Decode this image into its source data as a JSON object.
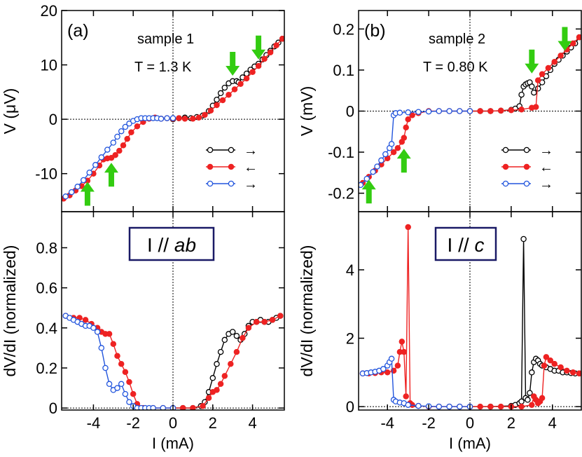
{
  "colors": {
    "up1": "#000000",
    "down": "#ee2222",
    "up2": "#2255dd",
    "arrow": "#33cc11"
  },
  "chart_data": [
    {
      "type": "scatter",
      "panel": "a-top",
      "label": "(a)",
      "annotations": [
        "sample 1",
        "T = 1.3 K"
      ],
      "ylabel": "V (μV)",
      "xlim": [
        -5.6,
        5.6
      ],
      "ylim": [
        -17,
        20
      ],
      "yticks": [
        "20",
        "10",
        "0",
        "-10"
      ],
      "ytick_values": [
        20,
        10,
        0,
        -10
      ],
      "legend": [
        "→",
        "←",
        "→"
      ],
      "green_arrows": [
        {
          "x": 3.0,
          "y": 7.5,
          "dir": "down"
        },
        {
          "x": 4.3,
          "y": 10.5,
          "dir": "down"
        },
        {
          "x": -4.3,
          "y": -11.0,
          "dir": "up"
        },
        {
          "x": -3.1,
          "y": -7.5,
          "dir": "up"
        }
      ],
      "series": [
        {
          "name": "up1",
          "style": "open",
          "color_key": "up1",
          "x": [
            0.0,
            0.3,
            0.6,
            0.9,
            1.2,
            1.5,
            1.8,
            2.0,
            2.2,
            2.4,
            2.6,
            2.8,
            3.0,
            3.2,
            3.3,
            3.5,
            3.7,
            3.9,
            4.1,
            4.3,
            4.5,
            4.7,
            4.9,
            5.1,
            5.3,
            5.5
          ],
          "y": [
            0.0,
            0.2,
            0.3,
            0.2,
            0.4,
            0.7,
            1.5,
            2.5,
            3.6,
            4.8,
            5.8,
            6.6,
            7.0,
            7.0,
            6.8,
            7.7,
            8.4,
            9.1,
            9.7,
            10.2,
            11.0,
            11.8,
            12.6,
            13.4,
            14.1,
            14.8
          ]
        },
        {
          "name": "down",
          "style": "filled",
          "color_key": "down",
          "x": [
            5.5,
            5.2,
            4.9,
            4.6,
            4.3,
            4.0,
            3.7,
            3.4,
            3.1,
            2.8,
            2.5,
            2.2,
            1.9,
            1.6,
            1.3,
            1.0,
            0.6,
            0.3,
            0.0,
            -0.3,
            -0.6,
            -0.9,
            -1.2,
            -1.5,
            -1.8,
            -2.1,
            -2.3,
            -2.5,
            -2.7,
            -2.9,
            -3.1,
            -3.3,
            -3.5,
            -3.7,
            -4.0,
            -4.3,
            -4.6,
            -4.9,
            -5.2,
            -5.5
          ],
          "y": [
            14.8,
            13.6,
            12.3,
            11.1,
            9.8,
            8.7,
            7.5,
            6.5,
            5.5,
            4.5,
            3.5,
            2.6,
            1.6,
            0.8,
            0.3,
            0.1,
            0.1,
            0.2,
            0.1,
            0.2,
            0.1,
            0.3,
            0.1,
            -0.5,
            -1.3,
            -2.4,
            -3.6,
            -4.8,
            -5.8,
            -6.6,
            -7.1,
            -7.2,
            -7.4,
            -8.5,
            -10.0,
            -11.3,
            -12.3,
            -13.1,
            -14.0,
            -14.6
          ]
        },
        {
          "name": "up2",
          "style": "open",
          "color_key": "up2",
          "x": [
            -5.4,
            -5.1,
            -4.8,
            -4.5,
            -4.2,
            -3.9,
            -3.6,
            -3.3,
            -3.0,
            -2.8,
            -2.6,
            -2.4,
            -2.2,
            -2.0,
            -1.8,
            -1.6,
            -1.4,
            -1.2,
            -1.0,
            -0.8,
            -0.6,
            -0.3,
            0.0
          ],
          "y": [
            -14.2,
            -13.4,
            -12.4,
            -11.2,
            -9.8,
            -8.4,
            -7.0,
            -5.6,
            -4.3,
            -3.2,
            -2.2,
            -1.4,
            -0.8,
            -0.3,
            0.0,
            0.2,
            0.2,
            0.2,
            0.2,
            0.2,
            0.1,
            0.2,
            0.2
          ]
        }
      ]
    },
    {
      "type": "scatter",
      "panel": "a-bottom",
      "box_label_plain": "I // ",
      "box_label_italic": "ab",
      "xlabel": "I (mA)",
      "ylabel": "dV/dI (normalized)",
      "xlim": [
        -5.6,
        5.6
      ],
      "ylim": [
        -0.01,
        0.98
      ],
      "xticks": [
        "-4",
        "-2",
        "0",
        "2",
        "4"
      ],
      "xtick_values": [
        -4,
        -2,
        0,
        2,
        4
      ],
      "yticks": [
        "0.8",
        "0.6",
        "0.4",
        "0.2",
        "0"
      ],
      "ytick_values": [
        0.8,
        0.6,
        0.4,
        0.2,
        0
      ],
      "series": [
        {
          "name": "up1",
          "style": "open",
          "color_key": "up1",
          "x": [
            0.0,
            0.5,
            1.0,
            1.4,
            1.6,
            1.8,
            2.0,
            2.2,
            2.4,
            2.6,
            2.8,
            3.0,
            3.2,
            3.4,
            3.6,
            3.8,
            4.0,
            4.2,
            4.4,
            4.6,
            4.8,
            5.0,
            5.2,
            5.4
          ],
          "y": [
            0.0,
            0.0,
            0.0,
            0.01,
            0.03,
            0.08,
            0.15,
            0.22,
            0.28,
            0.34,
            0.37,
            0.38,
            0.36,
            0.34,
            0.37,
            0.41,
            0.43,
            0.43,
            0.44,
            0.43,
            0.43,
            0.44,
            0.45,
            0.46
          ]
        },
        {
          "name": "down",
          "style": "filled",
          "color_key": "down",
          "x": [
            5.4,
            5.0,
            4.6,
            4.2,
            3.8,
            3.5,
            3.2,
            2.9,
            2.6,
            2.4,
            2.2,
            2.0,
            1.8,
            1.5,
            1.0,
            0.5,
            0.0,
            -0.5,
            -1.0,
            -1.5,
            -1.8,
            -2.0,
            -2.2,
            -2.4,
            -2.6,
            -2.8,
            -3.0,
            -3.2,
            -3.4,
            -3.6,
            -3.8,
            -4.1,
            -4.4,
            -4.7,
            -5.0,
            -5.4
          ],
          "y": [
            0.46,
            0.44,
            0.43,
            0.43,
            0.4,
            0.35,
            0.28,
            0.22,
            0.16,
            0.12,
            0.09,
            0.08,
            0.05,
            0.01,
            0.0,
            0.0,
            0.0,
            0.0,
            0.0,
            0.0,
            0.02,
            0.07,
            0.13,
            0.18,
            0.22,
            0.26,
            0.32,
            0.37,
            0.37,
            0.38,
            0.4,
            0.42,
            0.44,
            0.45,
            0.45,
            0.46
          ]
        },
        {
          "name": "up2",
          "style": "open",
          "color_key": "up2",
          "x": [
            -5.4,
            -5.2,
            -5.0,
            -4.8,
            -4.6,
            -4.4,
            -4.2,
            -4.0,
            -3.8,
            -3.6,
            -3.4,
            -3.2,
            -3.0,
            -2.8,
            -2.6,
            -2.4,
            -2.2,
            -2.0,
            -1.8,
            -1.6,
            -1.4,
            -1.2,
            -1.0,
            -0.5,
            0.0
          ],
          "y": [
            0.46,
            0.45,
            0.44,
            0.43,
            0.42,
            0.41,
            0.41,
            0.4,
            0.38,
            0.3,
            0.2,
            0.12,
            0.09,
            0.1,
            0.12,
            0.07,
            0.03,
            0.01,
            0.0,
            0.0,
            0.0,
            0.0,
            0.0,
            0.0,
            0.0
          ]
        }
      ]
    },
    {
      "type": "scatter",
      "panel": "b-top",
      "label": "(b)",
      "annotations": [
        "sample 2",
        "T = 0.80 K"
      ],
      "ylabel": "V (mV)",
      "xlim": [
        -5.4,
        5.4
      ],
      "ylim": [
        -0.245,
        0.245
      ],
      "yticks": [
        "0.2",
        "0.1",
        "0",
        "-0.1",
        "-0.2"
      ],
      "ytick_values": [
        0.2,
        0.1,
        0,
        -0.1,
        -0.2
      ],
      "legend": [
        "→",
        "←",
        "→"
      ],
      "green_arrows": [
        {
          "x": 3.0,
          "y": 0.085,
          "dir": "down"
        },
        {
          "x": 4.6,
          "y": 0.14,
          "dir": "down"
        },
        {
          "x": -4.9,
          "y": -0.16,
          "dir": "up"
        },
        {
          "x": -3.2,
          "y": -0.085,
          "dir": "up"
        }
      ],
      "series": [
        {
          "name": "up1",
          "style": "open",
          "color_key": "up1",
          "x": [
            0.0,
            0.5,
            1.0,
            1.5,
            2.0,
            2.2,
            2.4,
            2.5,
            2.6,
            2.7,
            2.8,
            2.9,
            3.0,
            3.1,
            3.3,
            3.5,
            3.7,
            3.9,
            4.1,
            4.3,
            4.5,
            4.7,
            4.9,
            5.1,
            5.3
          ],
          "y": [
            0.0,
            0.0,
            0.0,
            0.001,
            0.003,
            0.006,
            0.012,
            0.04,
            0.06,
            0.065,
            0.068,
            0.07,
            0.06,
            0.045,
            0.055,
            0.07,
            0.085,
            0.1,
            0.115,
            0.125,
            0.135,
            0.145,
            0.155,
            0.165,
            0.18
          ]
        },
        {
          "name": "down",
          "style": "filled",
          "color_key": "down",
          "x": [
            5.3,
            5.0,
            4.7,
            4.4,
            4.1,
            3.8,
            3.5,
            3.3,
            3.2,
            3.0,
            2.5,
            2.0,
            1.5,
            1.0,
            0.5,
            0.0,
            -0.5,
            -1.0,
            -1.5,
            -2.0,
            -2.5,
            -2.8,
            -3.0,
            -3.1,
            -3.2,
            -3.3,
            -3.5,
            -3.7,
            -4.0,
            -4.3,
            -4.6,
            -4.9,
            -5.2
          ],
          "y": [
            0.18,
            0.165,
            0.15,
            0.135,
            0.12,
            0.105,
            0.09,
            0.075,
            0.01,
            0.008,
            0.004,
            0.002,
            0.001,
            0.0,
            0.0,
            0.0,
            0.0,
            0.0,
            0.0,
            0.0,
            -0.005,
            -0.01,
            -0.02,
            -0.04,
            -0.065,
            -0.075,
            -0.09,
            -0.1,
            -0.115,
            -0.13,
            -0.145,
            -0.16,
            -0.175
          ]
        },
        {
          "name": "up2",
          "style": "open",
          "color_key": "up2",
          "x": [
            -5.3,
            -5.0,
            -4.7,
            -4.5,
            -4.3,
            -4.1,
            -3.9,
            -3.8,
            -3.7,
            -3.6,
            -3.4,
            -3.0,
            -2.5,
            -2.0,
            -1.5,
            -1.0,
            -0.5,
            0.0
          ],
          "y": [
            -0.18,
            -0.165,
            -0.148,
            -0.135,
            -0.12,
            -0.105,
            -0.09,
            -0.08,
            -0.01,
            -0.005,
            -0.004,
            -0.003,
            -0.002,
            -0.001,
            0.0,
            0.0,
            0.0,
            0.0
          ]
        }
      ]
    },
    {
      "type": "scatter",
      "panel": "b-bottom",
      "box_label_plain": "I // ",
      "box_label_italic": "c",
      "xlabel": "I (mA)",
      "ylabel": "dV/dI (normalized)",
      "xlim": [
        -5.4,
        5.4
      ],
      "ylim": [
        -0.1,
        5.7
      ],
      "xticks": [
        "-4",
        "-2",
        "0",
        "2",
        "4"
      ],
      "xtick_values": [
        -4,
        -2,
        0,
        2,
        4
      ],
      "yticks": [
        "4",
        "2",
        "0"
      ],
      "ytick_values": [
        4,
        2,
        0
      ],
      "series": [
        {
          "name": "up1",
          "style": "open",
          "color_key": "up1",
          "x": [
            0.0,
            1.0,
            2.0,
            2.2,
            2.4,
            2.5,
            2.6,
            2.7,
            2.8,
            2.9,
            3.0,
            3.1,
            3.2,
            3.3,
            3.4,
            3.5,
            3.7,
            3.9,
            4.1,
            4.3,
            4.5,
            4.7,
            4.9,
            5.1,
            5.3
          ],
          "y": [
            0.0,
            0.0,
            0.02,
            0.05,
            0.1,
            0.15,
            4.9,
            0.25,
            0.2,
            0.4,
            1.0,
            1.3,
            1.4,
            1.35,
            1.25,
            1.2,
            1.15,
            1.1,
            1.05,
            1.05,
            1.0,
            1.0,
            0.98,
            0.97,
            0.97
          ]
        },
        {
          "name": "down",
          "style": "filled",
          "color_key": "down",
          "x": [
            5.3,
            5.0,
            4.7,
            4.4,
            4.1,
            3.9,
            3.7,
            3.6,
            3.5,
            3.4,
            3.3,
            3.2,
            3.1,
            3.0,
            2.5,
            2.0,
            1.5,
            1.0,
            0.5,
            0.0,
            -0.5,
            -1.0,
            -1.5,
            -2.0,
            -2.5,
            -2.8,
            -2.9,
            -3.0,
            -3.1,
            -3.2,
            -3.3,
            -3.4,
            -3.5,
            -3.7,
            -4.0,
            -4.3,
            -4.6,
            -4.9,
            -5.2
          ],
          "y": [
            0.97,
            1.0,
            1.05,
            1.15,
            1.25,
            1.35,
            1.45,
            1.2,
            0.25,
            0.15,
            0.1,
            0.2,
            0.3,
            0.05,
            0.0,
            0.0,
            0.0,
            0.0,
            0.0,
            0.0,
            0.0,
            0.0,
            0.0,
            0.0,
            0.02,
            0.05,
            0.1,
            5.25,
            0.3,
            1.6,
            1.9,
            1.6,
            1.2,
            1.05,
            1.0,
            1.0,
            0.98,
            0.97,
            0.97
          ]
        },
        {
          "name": "up2",
          "style": "open",
          "color_key": "up2",
          "x": [
            -5.2,
            -5.0,
            -4.8,
            -4.6,
            -4.4,
            -4.2,
            -4.0,
            -3.9,
            -3.8,
            -3.7,
            -3.6,
            -3.4,
            -3.2,
            -3.0,
            -2.5,
            -2.0,
            -1.5,
            -1.0,
            -0.5,
            0.0
          ],
          "y": [
            0.97,
            0.98,
            1.0,
            1.02,
            1.05,
            1.1,
            1.2,
            1.3,
            1.4,
            0.2,
            0.15,
            0.12,
            0.1,
            0.05,
            0.02,
            0.01,
            0.0,
            0.0,
            0.0,
            0.0
          ]
        }
      ]
    }
  ]
}
